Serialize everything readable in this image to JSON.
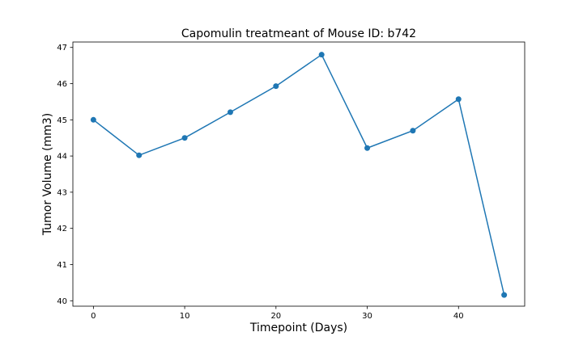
{
  "chart_data": {
    "type": "line",
    "title": "Capomulin treatmeant of Mouse ID: b742",
    "xlabel": "Timepoint (Days)",
    "ylabel": "Tumor Volume (mm3)",
    "x": [
      0,
      5,
      10,
      15,
      20,
      25,
      30,
      35,
      40,
      45
    ],
    "xticks": [
      0,
      10,
      20,
      30,
      40
    ],
    "yticks": [
      40,
      41,
      42,
      43,
      44,
      45,
      46,
      47
    ],
    "xlim": [
      -2.25,
      47.25
    ],
    "ylim": [
      39.85,
      47.15
    ],
    "grid": false,
    "series": [
      {
        "values": [
          45.0,
          44.02,
          44.5,
          45.21,
          45.93,
          46.8,
          44.22,
          44.7,
          45.57,
          40.16
        ],
        "color": "#1f77b4",
        "marker": "circle"
      }
    ]
  }
}
